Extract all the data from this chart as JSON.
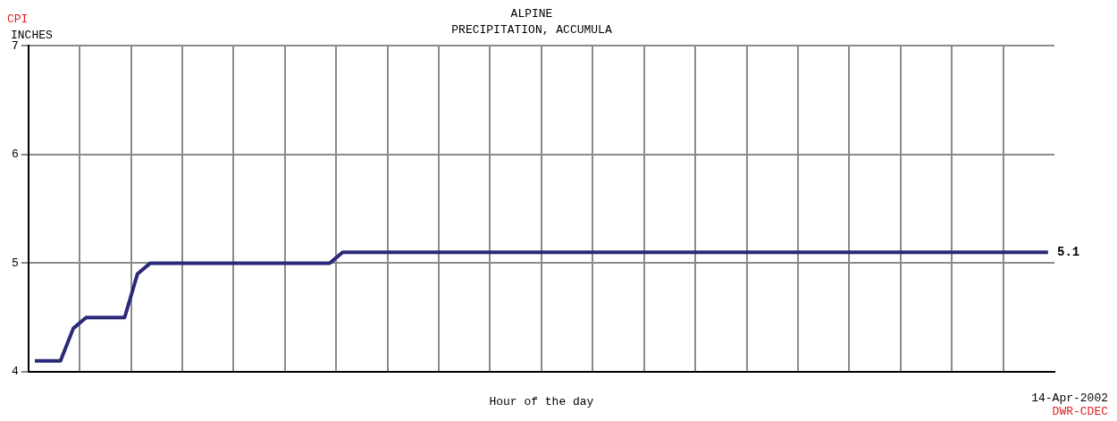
{
  "chart_data": {
    "type": "line",
    "title": "ALPINE",
    "subtitle": "PRECIPITATION, ACCUMULA",
    "ylabel": "INCHES",
    "xlabel": "Hour of the day",
    "categories": [
      null,
      null,
      null,
      null,
      null,
      null,
      null,
      null,
      null,
      null,
      null,
      null,
      null,
      null,
      null,
      null,
      null,
      null,
      null,
      null,
      null,
      null,
      null,
      null,
      null,
      null,
      null,
      null,
      null,
      null,
      null,
      null,
      null,
      null,
      null,
      null,
      null,
      null,
      null,
      null,
      null,
      null,
      null,
      null,
      null,
      null,
      null,
      null,
      null,
      null,
      null,
      null,
      null,
      null,
      null,
      null,
      null,
      null,
      null,
      null,
      null,
      null,
      null,
      null,
      null,
      null,
      null,
      null,
      null,
      null,
      null,
      null,
      null,
      null,
      null,
      null,
      null,
      null,
      null,
      null
    ],
    "series": [
      {
        "color": "#2b2a78",
        "values": [
          4.1,
          4.1,
          4.1,
          4.4,
          4.5,
          4.5,
          4.5,
          4.5,
          4.9,
          5.0,
          5.0,
          5.0,
          5.0,
          5.0,
          5.0,
          5.0,
          5.0,
          5.0,
          5.0,
          5.0,
          5.0,
          5.0,
          5.0,
          5.0,
          5.1,
          5.1,
          5.1,
          5.1,
          5.1,
          5.1,
          5.1,
          5.1,
          5.1,
          5.1,
          5.1,
          5.1,
          5.1,
          5.1,
          5.1,
          5.1,
          5.1,
          5.1,
          5.1,
          5.1,
          5.1,
          5.1,
          5.1,
          5.1,
          5.1,
          5.1,
          5.1,
          5.1,
          5.1,
          5.1,
          5.1,
          5.1,
          5.1,
          5.1,
          5.1,
          5.1,
          5.1,
          5.1,
          5.1,
          5.1,
          5.1,
          5.1,
          5.1,
          5.1,
          5.1,
          5.1,
          5.1,
          5.1,
          5.1,
          5.1,
          5.1,
          5.1,
          5.1,
          5.1,
          5.1,
          5.1
        ]
      }
    ],
    "ylim": [
      4,
      7
    ],
    "yticks": [
      4,
      5,
      6,
      7
    ],
    "grid": true,
    "legend": false,
    "marker": "none",
    "tick_labels": "y",
    "annotations": [
      "CPI",
      "5.1",
      "14-Apr-2002",
      "DWR-CDEC"
    ]
  }
}
